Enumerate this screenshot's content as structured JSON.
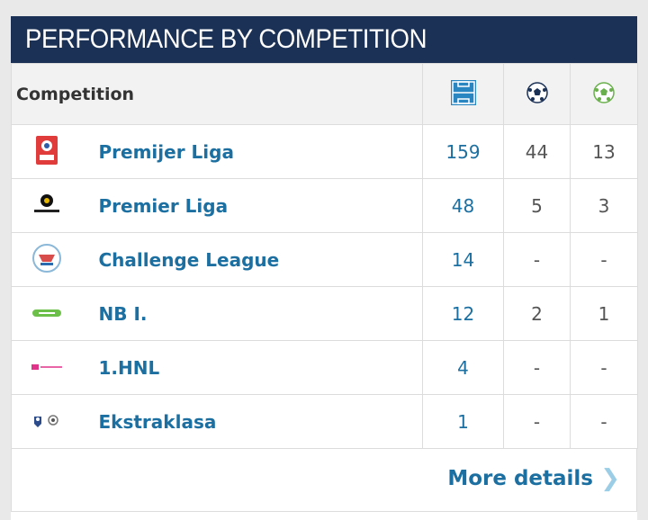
{
  "header": {
    "title": "PERFORMANCE BY COMPETITION"
  },
  "table": {
    "columns": {
      "competition": "Competition",
      "apps_icon": "pitch-icon",
      "goals_icon": "ball-icon",
      "assists_icon": "assist-ball-icon"
    },
    "rows": [
      {
        "competition": "Premijer Liga",
        "apps": "159",
        "goals": "44",
        "assists": "13"
      },
      {
        "competition": "Premier Liga",
        "apps": "48",
        "goals": "5",
        "assists": "3"
      },
      {
        "competition": "Challenge League",
        "apps": "14",
        "goals": "-",
        "assists": "-"
      },
      {
        "competition": "NB I.",
        "apps": "12",
        "goals": "2",
        "assists": "1"
      },
      {
        "competition": "1.HNL",
        "apps": "4",
        "goals": "-",
        "assists": "-"
      },
      {
        "competition": "Ekstraklasa",
        "apps": "1",
        "goals": "-",
        "assists": "-"
      }
    ]
  },
  "footer": {
    "more_label": "More details"
  },
  "colors": {
    "header_bg": "#1b3155",
    "link": "#1c6fa1",
    "chevron": "#9ccde6"
  }
}
